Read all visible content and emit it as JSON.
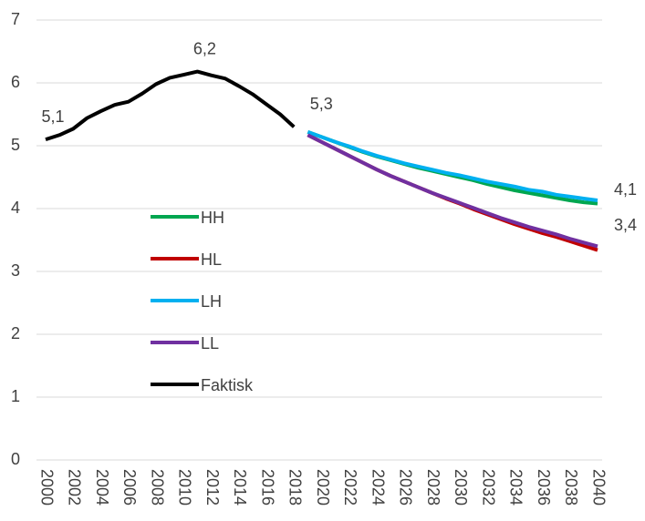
{
  "chart_data": {
    "type": "line",
    "x": [
      2000,
      2001,
      2002,
      2003,
      2004,
      2005,
      2006,
      2007,
      2008,
      2009,
      2010,
      2011,
      2012,
      2013,
      2014,
      2015,
      2016,
      2017,
      2018,
      2019,
      2020,
      2021,
      2022,
      2023,
      2024,
      2025,
      2026,
      2027,
      2028,
      2029,
      2030,
      2031,
      2032,
      2033,
      2034,
      2035,
      2036,
      2037,
      2038,
      2039,
      2040
    ],
    "xlim": [
      2000,
      2040
    ],
    "xticks": [
      2000,
      2002,
      2004,
      2006,
      2008,
      2010,
      2012,
      2014,
      2016,
      2018,
      2020,
      2022,
      2024,
      2026,
      2028,
      2030,
      2032,
      2034,
      2036,
      2038,
      2040
    ],
    "ylim": [
      0,
      7
    ],
    "yticks": [
      0,
      1,
      2,
      3,
      4,
      5,
      6,
      7
    ],
    "grid": true,
    "legend": "inside-left",
    "series": [
      {
        "name": "HH",
        "color": "#00a650",
        "values": [
          null,
          null,
          null,
          null,
          null,
          null,
          null,
          null,
          null,
          null,
          null,
          null,
          null,
          null,
          null,
          null,
          null,
          null,
          null,
          5.22,
          5.14,
          5.06,
          4.98,
          4.9,
          4.83,
          4.77,
          4.71,
          4.65,
          4.6,
          4.55,
          4.5,
          4.45,
          4.39,
          4.34,
          4.29,
          4.25,
          4.21,
          4.17,
          4.13,
          4.1,
          4.08
        ],
        "value_labels": [
          null,
          null,
          null,
          null,
          null,
          null,
          null,
          null,
          null,
          null,
          null,
          null,
          null,
          null,
          null,
          null,
          null,
          null,
          null,
          null,
          null,
          null,
          null,
          null,
          null,
          null,
          null,
          null,
          null,
          null,
          null,
          null,
          null,
          null,
          null,
          null,
          null,
          null,
          null,
          null,
          "4,1"
        ]
      },
      {
        "name": "HL",
        "color": "#c00000",
        "values": [
          null,
          null,
          null,
          null,
          null,
          null,
          null,
          null,
          null,
          null,
          null,
          null,
          null,
          null,
          null,
          null,
          null,
          null,
          null,
          5.17,
          5.06,
          4.95,
          4.84,
          4.73,
          4.62,
          4.52,
          4.43,
          4.34,
          4.25,
          4.16,
          4.08,
          3.99,
          3.91,
          3.83,
          3.75,
          3.68,
          3.61,
          3.55,
          3.48,
          3.41,
          3.34
        ]
      },
      {
        "name": "LH",
        "color": "#00b0f0",
        "values": [
          null,
          null,
          null,
          null,
          null,
          null,
          null,
          null,
          null,
          null,
          null,
          null,
          null,
          null,
          null,
          null,
          null,
          null,
          null,
          5.22,
          5.14,
          5.06,
          4.99,
          4.91,
          4.84,
          4.78,
          4.72,
          4.67,
          4.62,
          4.57,
          4.53,
          4.48,
          4.43,
          4.39,
          4.35,
          4.3,
          4.27,
          4.22,
          4.19,
          4.16,
          4.13
        ]
      },
      {
        "name": "LL",
        "color": "#7030a0",
        "values": [
          null,
          null,
          null,
          null,
          null,
          null,
          null,
          null,
          null,
          null,
          null,
          null,
          null,
          null,
          null,
          null,
          null,
          null,
          null,
          5.17,
          5.06,
          4.95,
          4.84,
          4.73,
          4.62,
          4.52,
          4.43,
          4.34,
          4.25,
          4.17,
          4.09,
          4.01,
          3.93,
          3.85,
          3.78,
          3.71,
          3.65,
          3.59,
          3.52,
          3.46,
          3.4
        ],
        "value_labels": [
          null,
          null,
          null,
          null,
          null,
          null,
          null,
          null,
          null,
          null,
          null,
          null,
          null,
          null,
          null,
          null,
          null,
          null,
          null,
          null,
          null,
          null,
          null,
          null,
          null,
          null,
          null,
          null,
          null,
          null,
          null,
          null,
          null,
          null,
          null,
          null,
          null,
          null,
          null,
          null,
          "3,4"
        ]
      },
      {
        "name": "Faktisk",
        "color": "#000000",
        "values": [
          5.1,
          5.17,
          5.27,
          5.44,
          5.55,
          5.65,
          5.7,
          5.83,
          5.98,
          6.08,
          6.13,
          6.18,
          6.12,
          6.07,
          5.95,
          5.82,
          5.66,
          5.5,
          5.3,
          null,
          null,
          null,
          null,
          null,
          null,
          null,
          null,
          null,
          null,
          null,
          null,
          null,
          null,
          null,
          null,
          null,
          null,
          null,
          null,
          null,
          null
        ],
        "value_labels": [
          "5,1",
          null,
          null,
          null,
          null,
          null,
          null,
          null,
          null,
          null,
          null,
          "6,2",
          null,
          null,
          null,
          null,
          null,
          null,
          "5,3",
          null,
          null,
          null,
          null,
          null,
          null,
          null,
          null,
          null,
          null,
          null,
          null,
          null,
          null,
          null,
          null,
          null,
          null,
          null,
          null,
          null,
          null
        ]
      }
    ]
  }
}
